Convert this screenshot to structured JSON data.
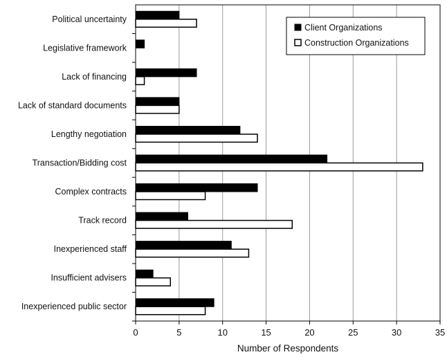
{
  "chart_data": {
    "type": "bar",
    "orientation": "horizontal",
    "categories": [
      "Political uncertainty",
      "Legislative framework",
      "Lack of financing",
      "Lack of standard documents",
      "Lengthy negotiation",
      "Transaction/Bidding cost",
      "Complex contracts",
      "Track record",
      "Inexperienced staff",
      "Insufficient advisers",
      "Inexperienced public sector"
    ],
    "series": [
      {
        "name": "Client Organizations",
        "color": "#000000",
        "values": [
          5,
          1,
          7,
          5,
          12,
          22,
          14,
          6,
          11,
          2,
          9
        ]
      },
      {
        "name": "Construction Organizations",
        "color": "#ffffff",
        "values": [
          7,
          0,
          1,
          5,
          14,
          33,
          8,
          18,
          13,
          4,
          8
        ]
      }
    ],
    "xlabel": "Number of Respondents",
    "ylabel": "",
    "xlim": [
      0,
      35
    ],
    "xticks": [
      "0",
      "5",
      "10",
      "15",
      "20",
      "25",
      "30",
      "35"
    ],
    "grid": "vertical",
    "legend_position": "top-right"
  }
}
